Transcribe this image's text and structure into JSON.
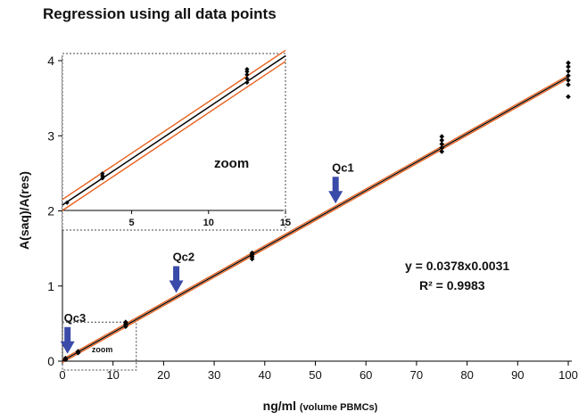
{
  "chart_data": {
    "type": "scatter",
    "title": "Regression using all data points",
    "xlabel": "ng/ml",
    "xlabel_sub": "(volume PBMCs)",
    "ylabel": "A(saq)/A(res)",
    "xlim": [
      0,
      100
    ],
    "ylim": [
      0,
      4
    ],
    "x_ticks": [
      0,
      10,
      20,
      30,
      40,
      50,
      60,
      70,
      80,
      90,
      100
    ],
    "y_ticks": [
      0,
      1,
      2,
      3,
      4
    ],
    "grid": false,
    "points": [
      {
        "x": 0.6,
        "y": 0.03
      },
      {
        "x": 0.6,
        "y": 0.02
      },
      {
        "x": 0.6,
        "y": 0.04
      },
      {
        "x": 3.1,
        "y": 0.11
      },
      {
        "x": 3.1,
        "y": 0.12
      },
      {
        "x": 3.1,
        "y": 0.13
      },
      {
        "x": 12.5,
        "y": 0.46
      },
      {
        "x": 12.5,
        "y": 0.48
      },
      {
        "x": 12.5,
        "y": 0.5
      },
      {
        "x": 12.5,
        "y": 0.52
      },
      {
        "x": 37.5,
        "y": 1.36
      },
      {
        "x": 37.5,
        "y": 1.39
      },
      {
        "x": 37.5,
        "y": 1.42
      },
      {
        "x": 37.5,
        "y": 1.44
      },
      {
        "x": 75,
        "y": 2.79
      },
      {
        "x": 75,
        "y": 2.84
      },
      {
        "x": 75,
        "y": 2.89
      },
      {
        "x": 75,
        "y": 2.94
      },
      {
        "x": 75,
        "y": 2.99
      },
      {
        "x": 100,
        "y": 3.52
      },
      {
        "x": 100,
        "y": 3.68
      },
      {
        "x": 100,
        "y": 3.74
      },
      {
        "x": 100,
        "y": 3.8
      },
      {
        "x": 100,
        "y": 3.86
      },
      {
        "x": 100,
        "y": 3.92
      },
      {
        "x": 100,
        "y": 3.97
      }
    ],
    "regression": {
      "slope": 0.0378,
      "intercept": 0.0031
    },
    "equation_text": "y = 0.0378x0.0031",
    "r2_text": "R² = 0.9983",
    "markers": [
      {
        "label": "Qc3",
        "x": 1.0,
        "y": 0.05
      },
      {
        "label": "Qc2",
        "x": 22.5,
        "y": 0.86
      },
      {
        "label": "Qc1",
        "x": 54,
        "y": 2.05
      }
    ],
    "zoom_label": "zoom",
    "inset": {
      "label": "zoom",
      "xlim": [
        0.5,
        15
      ],
      "ylim": [
        1.75,
        4
      ],
      "x_ticks": [
        5,
        10,
        15
      ],
      "points": [
        {
          "x": 0.8,
          "y": 2.1
        },
        {
          "x": 3.1,
          "y": 2.41
        },
        {
          "x": 3.1,
          "y": 2.44
        },
        {
          "x": 3.1,
          "y": 2.47
        },
        {
          "x": 12.5,
          "y": 3.63
        },
        {
          "x": 12.5,
          "y": 3.68
        },
        {
          "x": 12.5,
          "y": 3.73
        },
        {
          "x": 12.5,
          "y": 3.77
        },
        {
          "x": 12.5,
          "y": 3.8
        }
      ],
      "line": [
        [
          0.5,
          2.07
        ],
        [
          15,
          3.97
        ]
      ],
      "band_offset": 0.07
    },
    "colors": {
      "line": "#000000",
      "band": "#e8601c",
      "arrow": "#3a4aa8",
      "points": "#000000"
    }
  }
}
